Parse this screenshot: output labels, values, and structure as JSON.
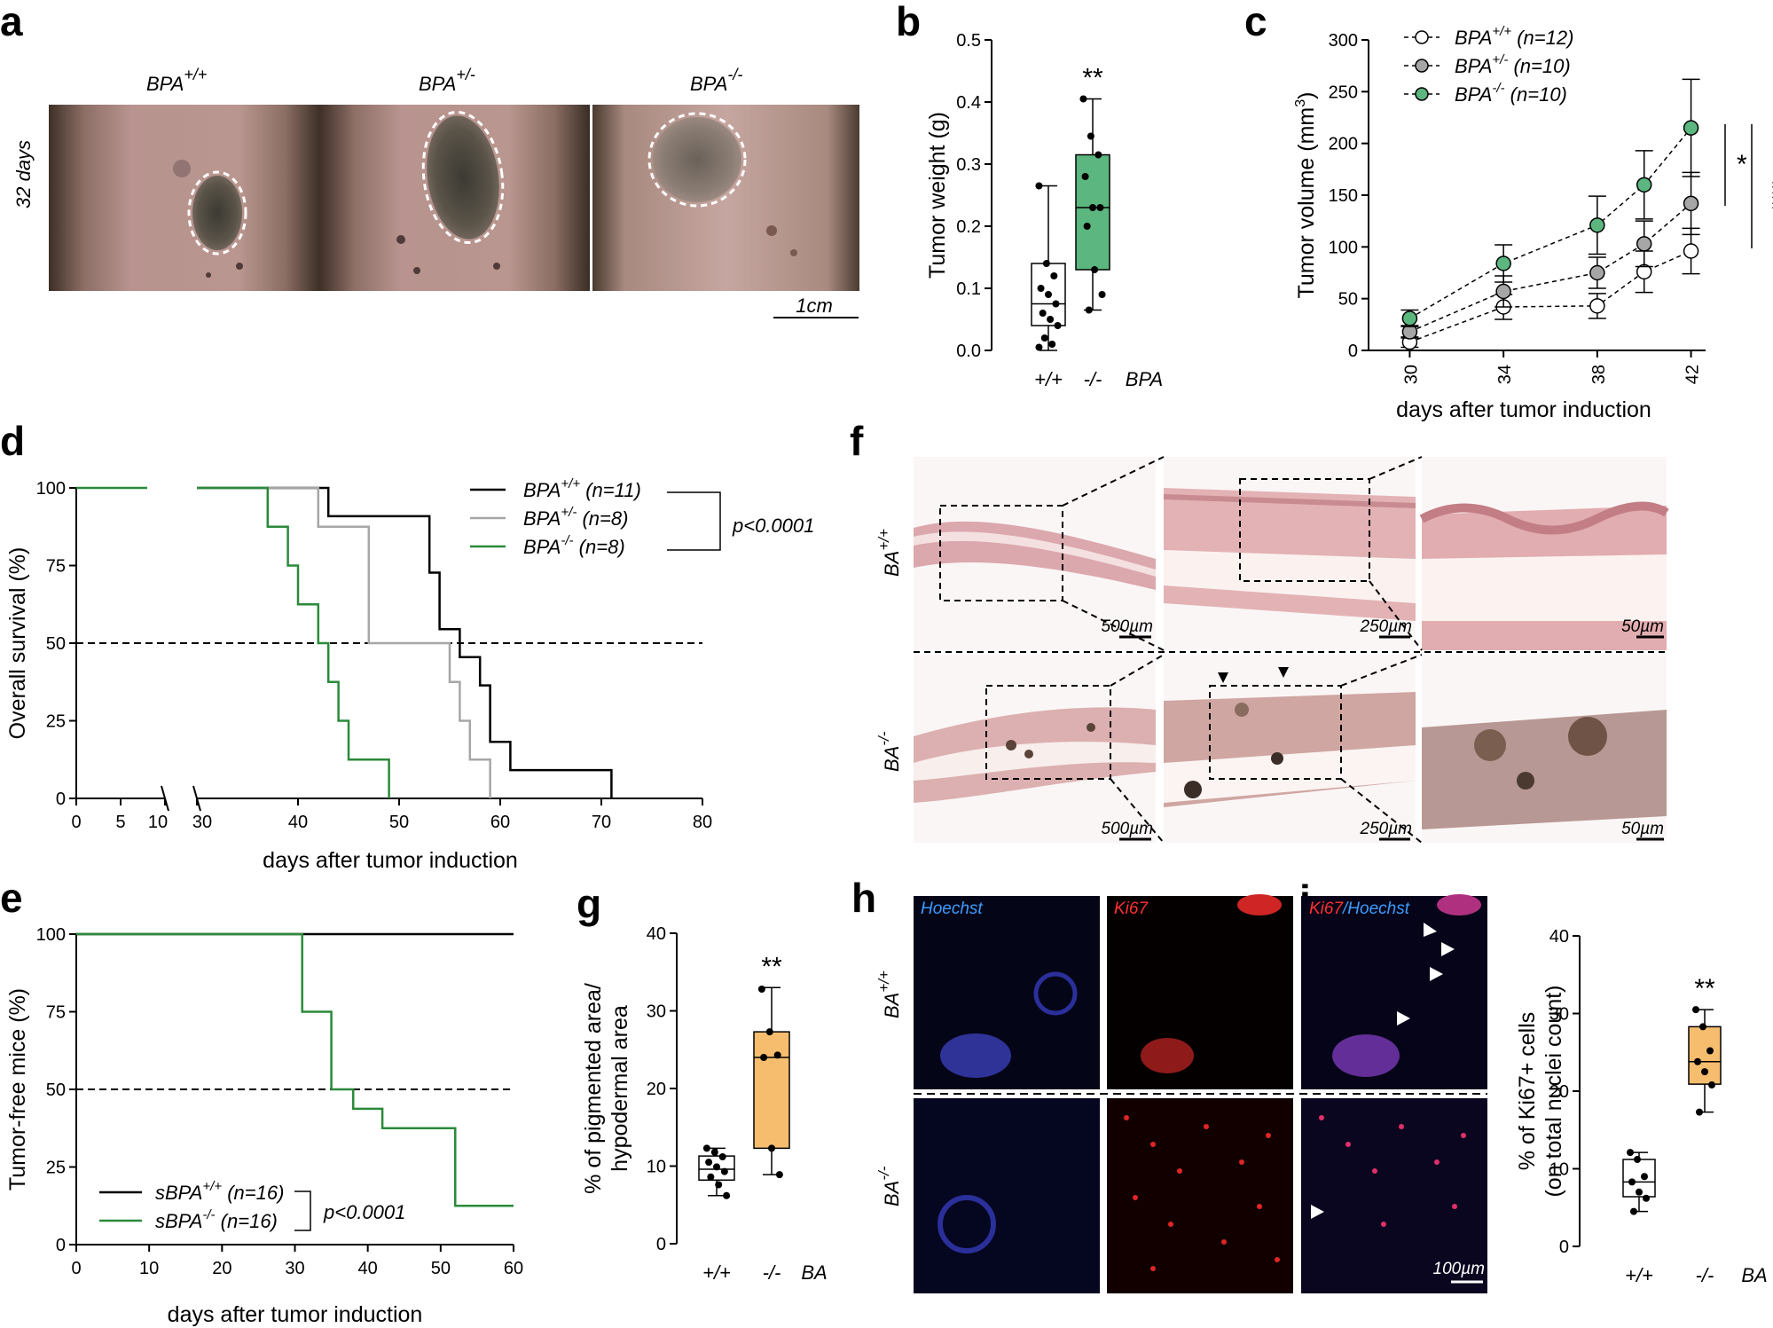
{
  "panels": {
    "a": "a",
    "b": "b",
    "c": "c",
    "d": "d",
    "e": "e",
    "f": "f",
    "g": "g",
    "h": "h",
    "i": "i"
  },
  "colors": {
    "green": "#5cb67f",
    "orange": "#f6bd6f",
    "gray": "#a6a6a6",
    "darkgreen": "#2a8a3a"
  },
  "panel_a": {
    "side_label": "32 days",
    "titles": [
      "BPA+/+",
      "BPA+/-",
      "BPA-/-"
    ],
    "titles_base": [
      "BPA",
      "BPA",
      "BPA"
    ],
    "titles_sup": [
      "+/+",
      "+/-",
      "-/-"
    ],
    "scalebar": "1cm"
  },
  "panel_f": {
    "rows": [
      {
        "base": "BA",
        "sup": "+/+"
      },
      {
        "base": "BA",
        "sup": "-/-"
      }
    ],
    "scales": [
      "500µm",
      "250µm",
      "50µm"
    ]
  },
  "panel_h": {
    "rows": [
      {
        "base": "BA",
        "sup": "+/+"
      },
      {
        "base": "BA",
        "sup": "-/-"
      }
    ],
    "channels": [
      "Hoechst",
      "Ki67",
      "Ki67/Hoechst"
    ],
    "merge_red": "Ki67",
    "merge_blue": "/Hoechst",
    "scale": "100µm"
  },
  "chart_data": [
    {
      "id": "b",
      "type": "box",
      "ylabel": "Tumor weight (g)",
      "categories": [
        "+/+",
        "-/-"
      ],
      "group_label": "BPA",
      "ylim": [
        0,
        0.5
      ],
      "yticks": [
        "0.0",
        "0.1",
        "0.2",
        "0.3",
        "0.4",
        "0.5"
      ],
      "significance": "**",
      "boxes": [
        {
          "min": 0.0,
          "q1": 0.04,
          "median": 0.075,
          "q3": 0.14,
          "max": 0.265,
          "color": "#ffffff",
          "points": [
            0.265,
            0.14,
            0.12,
            0.1,
            0.09,
            0.075,
            0.06,
            0.05,
            0.04,
            0.02,
            0.01,
            0.005
          ]
        },
        {
          "min": 0.065,
          "q1": 0.13,
          "median": 0.23,
          "q3": 0.315,
          "max": 0.405,
          "color": "#5cb67f",
          "points": [
            0.405,
            0.345,
            0.315,
            0.28,
            0.23,
            0.23,
            0.2,
            0.13,
            0.09,
            0.065
          ]
        }
      ]
    },
    {
      "id": "c",
      "type": "line",
      "ylabel": "Tumor volume (mm3)",
      "xlabel": "days after tumor induction",
      "xticks": [
        "30",
        "34",
        "38",
        "42"
      ],
      "yticks": [
        "0",
        "50",
        "100",
        "150",
        "200",
        "250",
        "300"
      ],
      "xlim": [
        29,
        43
      ],
      "ylim": [
        0,
        300
      ],
      "sig1": "*",
      "sig2": "***",
      "series": [
        {
          "name": "BPA+/+",
          "base": "BPA",
          "sup": "+/+",
          "n": "(n=12)",
          "color": "#ffffff",
          "x": [
            30,
            34,
            38,
            40,
            42
          ],
          "y": [
            8,
            42,
            43,
            76,
            96
          ],
          "err": [
            5,
            12,
            12,
            20,
            22
          ]
        },
        {
          "name": "BPA+/-",
          "base": "BPA",
          "sup": "+/-",
          "n": "(n=10)",
          "color": "#a6a6a6",
          "x": [
            30,
            34,
            38,
            40,
            42
          ],
          "y": [
            18,
            57,
            75,
            103,
            142
          ],
          "err": [
            6,
            15,
            15,
            22,
            30
          ]
        },
        {
          "name": "BPA-/-",
          "base": "BPA",
          "sup": "-/-",
          "n": "(n=10)",
          "color": "#5cb67f",
          "x": [
            30,
            34,
            38,
            40,
            42
          ],
          "y": [
            31,
            84,
            121,
            160,
            215
          ],
          "err": [
            8,
            18,
            28,
            33,
            47
          ]
        }
      ]
    },
    {
      "id": "d",
      "type": "survival",
      "ylabel": "Overall survival (%)",
      "xlabel": "days after tumor induction",
      "xticks_left": [
        "0",
        "5",
        "10"
      ],
      "xticks_right": [
        "30",
        "40",
        "50",
        "60",
        "70",
        "80"
      ],
      "yticks": [
        "0",
        "25",
        "50",
        "75",
        "100"
      ],
      "pvalue": "p<0.0001",
      "series": [
        {
          "name": "BPA+/+",
          "base": "BPA",
          "sup": "+/+",
          "n": "(n=11)",
          "color": "#000000",
          "steps": [
            [
              30,
              100
            ],
            [
              43,
              100
            ],
            [
              43,
              90.9
            ],
            [
              53,
              90.9
            ],
            [
              53,
              72.7
            ],
            [
              54,
              72.7
            ],
            [
              54,
              54.5
            ],
            [
              56,
              54.5
            ],
            [
              56,
              45.5
            ],
            [
              58,
              45.5
            ],
            [
              58,
              36.4
            ],
            [
              59,
              36.4
            ],
            [
              59,
              18.2
            ],
            [
              61,
              18.2
            ],
            [
              61,
              9.1
            ],
            [
              71,
              9.1
            ],
            [
              71,
              0
            ]
          ]
        },
        {
          "name": "BPA+/-",
          "base": "BPA",
          "sup": "+/-",
          "n": "(n=8)",
          "color": "#a6a6a6",
          "steps": [
            [
              30,
              100
            ],
            [
              42,
              100
            ],
            [
              42,
              87.5
            ],
            [
              47,
              87.5
            ],
            [
              47,
              50
            ],
            [
              55,
              50
            ],
            [
              55,
              37.5
            ],
            [
              56,
              37.5
            ],
            [
              56,
              25
            ],
            [
              57,
              25
            ],
            [
              57,
              12.5
            ],
            [
              59,
              12.5
            ],
            [
              59,
              0
            ]
          ]
        },
        {
          "name": "BPA-/-",
          "base": "BPA",
          "sup": "-/-",
          "n": "(n=8)",
          "color": "#2a8a3a",
          "steps": [
            [
              30,
              100
            ],
            [
              37,
              100
            ],
            [
              37,
              87.5
            ],
            [
              39,
              87.5
            ],
            [
              39,
              75
            ],
            [
              40,
              75
            ],
            [
              40,
              62.5
            ],
            [
              42,
              62.5
            ],
            [
              42,
              50
            ],
            [
              43,
              50
            ],
            [
              43,
              37.5
            ],
            [
              44,
              37.5
            ],
            [
              44,
              25
            ],
            [
              45,
              25
            ],
            [
              45,
              12.5
            ],
            [
              49,
              12.5
            ],
            [
              49,
              0
            ]
          ]
        }
      ]
    },
    {
      "id": "e",
      "type": "survival",
      "ylabel": "Tumor-free mice (%)",
      "xlabel": "days after tumor induction",
      "xticks": [
        "0",
        "10",
        "20",
        "30",
        "40",
        "50",
        "60"
      ],
      "yticks": [
        "0",
        "25",
        "50",
        "75",
        "100"
      ],
      "pvalue": "p<0.0001",
      "series": [
        {
          "name": "sBPA+/+",
          "base": "sBPA",
          "sup": "+/+",
          "n": "(n=16)",
          "color": "#000000",
          "steps": [
            [
              0,
              100
            ],
            [
              60,
              100
            ]
          ]
        },
        {
          "name": "sBPA-/-",
          "base": "sBPA",
          "sup": "-/-",
          "n": "(n=16)",
          "color": "#2a8a3a",
          "steps": [
            [
              0,
              100
            ],
            [
              31,
              100
            ],
            [
              31,
              75
            ],
            [
              35,
              75
            ],
            [
              35,
              50
            ],
            [
              38,
              50
            ],
            [
              38,
              43.75
            ],
            [
              42,
              43.75
            ],
            [
              42,
              37.5
            ],
            [
              52,
              37.5
            ],
            [
              52,
              12.5
            ],
            [
              60,
              12.5
            ]
          ]
        }
      ]
    },
    {
      "id": "g",
      "type": "box",
      "ylabel1": "% of pigmented area/",
      "ylabel2": "hypodermal area",
      "categories": [
        "+/+",
        "-/-"
      ],
      "group_label": "BA",
      "ylim": [
        0,
        40
      ],
      "yticks": [
        "0",
        "10",
        "20",
        "30",
        "40"
      ],
      "significance": "**",
      "boxes": [
        {
          "min": 6.2,
          "q1": 8.2,
          "median": 9.6,
          "q3": 11.3,
          "max": 12.3,
          "color": "#ffffff",
          "points": [
            12.3,
            11.8,
            11.2,
            10.5,
            9.9,
            9.3,
            8.6,
            7.6,
            6.2
          ]
        },
        {
          "min": 8.9,
          "q1": 12.3,
          "median": 24.0,
          "q3": 27.3,
          "max": 33.0,
          "color": "#f6bd6f",
          "points": [
            32.8,
            27.3,
            24.3,
            24.0,
            12.3,
            8.9
          ]
        }
      ]
    },
    {
      "id": "i",
      "type": "box",
      "ylabel1": "% of Ki67+ cells",
      "ylabel2": "(on total nuclei count)",
      "categories": [
        "+/+",
        "-/-"
      ],
      "group_label": "BA",
      "ylim": [
        0,
        40
      ],
      "yticks": [
        "0",
        "10",
        "20",
        "30",
        "40"
      ],
      "significance": "**",
      "boxes": [
        {
          "min": 4.5,
          "q1": 6.4,
          "median": 8.3,
          "q3": 11.2,
          "max": 12.1,
          "color": "#ffffff",
          "points": [
            12.1,
            11.2,
            9.0,
            8.3,
            7.0,
            6.2,
            4.5
          ]
        },
        {
          "min": 17.3,
          "q1": 20.9,
          "median": 23.8,
          "q3": 28.3,
          "max": 30.5,
          "color": "#f6bd6f",
          "points": [
            30.5,
            28.3,
            25.2,
            23.8,
            22.5,
            20.8,
            17.3
          ]
        }
      ]
    }
  ]
}
